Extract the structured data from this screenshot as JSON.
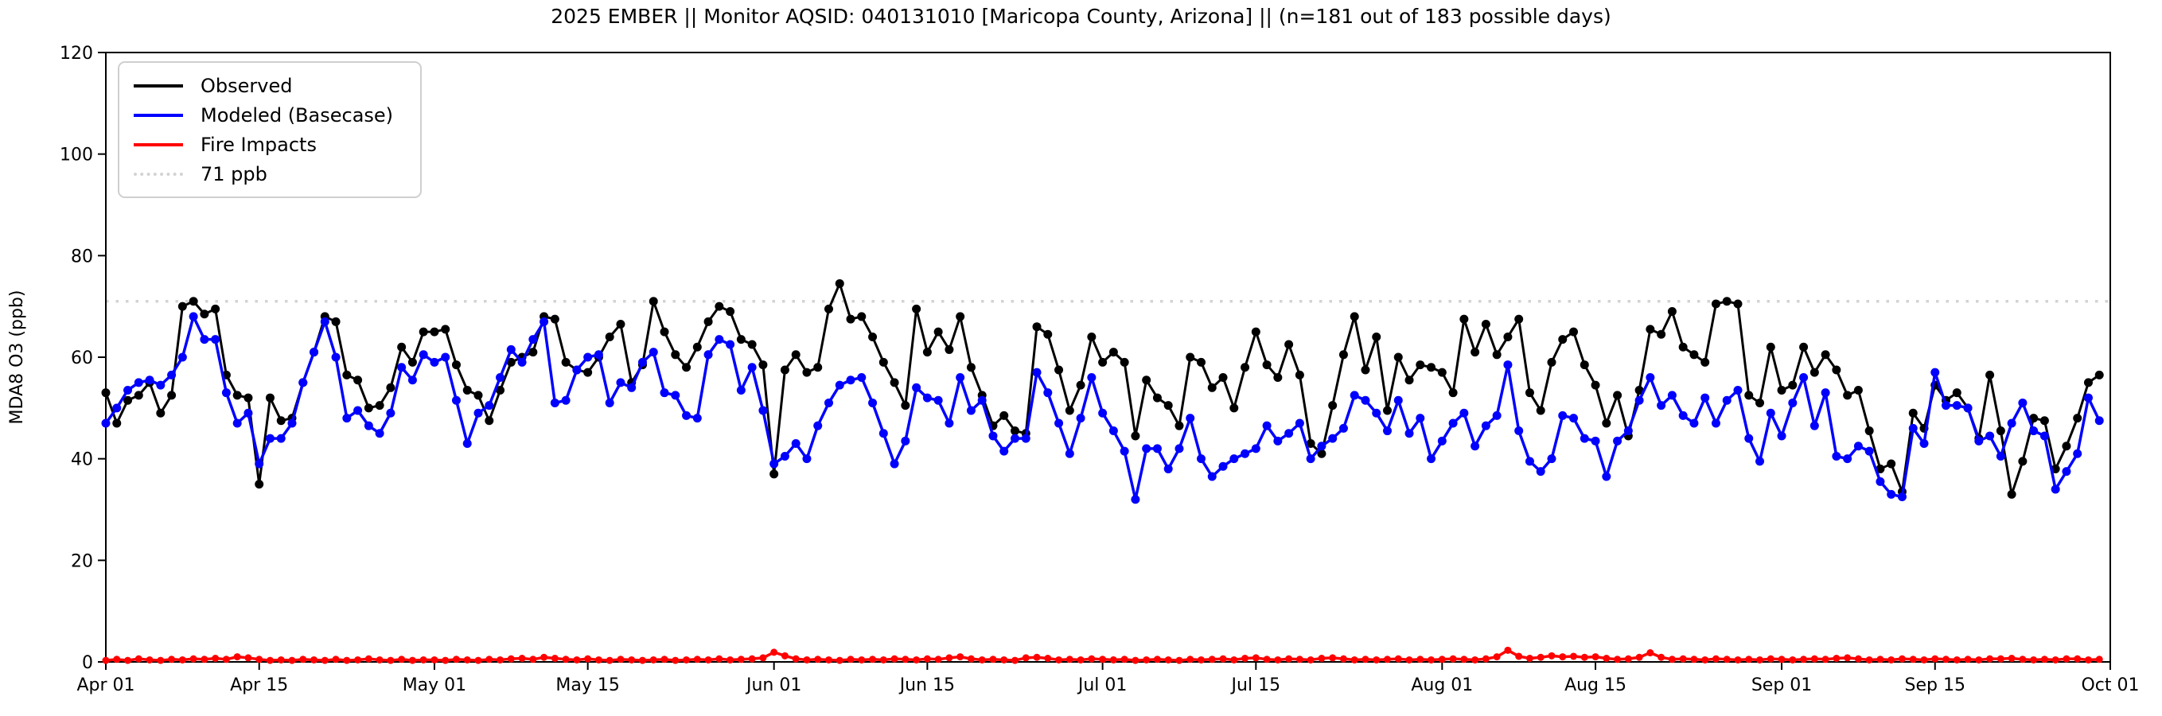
{
  "title": "2025 EMBER || Monitor AQSID: 040131010 [Maricopa County, Arizona] || (n=181 out of 183 possible days)",
  "legend": {
    "items": [
      {
        "label": "Observed",
        "color": "#000000",
        "style": "solid"
      },
      {
        "label": "Modeled (Basecase)",
        "color": "#0000ff",
        "style": "solid"
      },
      {
        "label": "Fire Impacts",
        "color": "#ff0000",
        "style": "solid"
      },
      {
        "label": "71 ppb",
        "color": "#d3d3d3",
        "style": "dotted"
      }
    ]
  },
  "y_axis": {
    "label": "MDA8 O3 (ppb)",
    "min": 0,
    "max": 120,
    "ticks": [
      0,
      20,
      40,
      60,
      80,
      100,
      120
    ]
  },
  "x_axis": {
    "ticks": [
      {
        "label": "Apr 01",
        "day": 0
      },
      {
        "label": "Apr 15",
        "day": 14
      },
      {
        "label": "May 01",
        "day": 30
      },
      {
        "label": "May 15",
        "day": 44
      },
      {
        "label": "Jun 01",
        "day": 61
      },
      {
        "label": "Jun 15",
        "day": 75
      },
      {
        "label": "Jul 01",
        "day": 91
      },
      {
        "label": "Jul 15",
        "day": 105
      },
      {
        "label": "Aug 01",
        "day": 122
      },
      {
        "label": "Aug 15",
        "day": 136
      },
      {
        "label": "Sep 01",
        "day": 153
      },
      {
        "label": "Sep 15",
        "day": 167
      },
      {
        "label": "Oct 01",
        "day": 183
      }
    ]
  },
  "chart_data": {
    "type": "line",
    "title": "2025 EMBER || Monitor AQSID: 040131010 [Maricopa County, Arizona] || (n=181 out of 183 possible days)",
    "xlabel": "",
    "ylabel": "MDA8 O3 (ppb)",
    "ylim": [
      0,
      120
    ],
    "x_description": "Daily values, day 0 = Apr 01 through day 182 = Sep 30; axis extends to Oct 01",
    "n_shown": 181,
    "n_possible": 183,
    "reference_line": {
      "value": 71,
      "label": "71 ppb",
      "color": "#d3d3d3",
      "linestyle": "dotted"
    },
    "legend_position": "upper left",
    "grid": false,
    "series": [
      {
        "name": "Observed",
        "color": "#000000",
        "marker": "circle",
        "values": [
          53,
          47,
          51.5,
          52.5,
          55,
          49,
          52.5,
          70,
          71,
          68.5,
          69.5,
          56.5,
          52.5,
          52,
          35,
          52,
          47.5,
          48,
          55,
          61,
          68,
          67,
          56.5,
          55.5,
          50,
          50.5,
          54,
          62,
          59,
          65,
          65,
          65.5,
          58.5,
          53.5,
          52.5,
          47.5,
          53.5,
          59,
          60,
          61,
          68,
          67.5,
          59,
          57.5,
          57,
          60,
          64,
          66.5,
          55,
          58.5,
          71,
          65,
          60.5,
          58,
          62,
          67,
          70,
          69,
          63.5,
          62.5,
          58.5,
          37,
          57.5,
          60.5,
          57,
          58,
          69.5,
          74.5,
          67.5,
          68,
          64,
          59,
          55,
          50.5,
          69.5,
          61,
          65,
          61.5,
          68,
          58,
          52.5,
          46.5,
          48.5,
          45.5,
          45,
          66,
          64.5,
          57.5,
          49.5,
          54.5,
          64,
          59,
          61,
          59,
          44.5,
          55.5,
          52,
          50.5,
          46.5,
          60,
          59,
          54,
          56,
          50,
          58,
          65,
          58.5,
          56,
          62.5,
          56.5,
          43,
          41,
          50.5,
          60.5,
          68,
          57.5,
          64,
          49.5,
          60,
          55.5,
          58.5,
          58,
          57,
          53,
          67.5,
          61,
          66.5,
          60.5,
          64,
          67.5,
          53,
          49.5,
          59,
          63.5,
          65,
          58.5,
          54.5,
          47,
          52.5,
          44.5,
          53.5,
          65.5,
          64.5,
          69,
          62,
          60.5,
          59,
          70.5,
          71,
          70.5,
          52.5,
          51,
          62,
          53.5,
          54.5,
          62,
          57,
          60.5,
          57.5,
          52.5,
          53.5,
          45.5,
          38,
          39,
          33.5,
          49,
          46,
          54.5,
          51.5,
          53,
          50,
          44,
          56.5,
          45.5,
          33,
          39.5,
          48,
          47.5,
          38,
          42.5,
          48,
          55,
          56.5
        ]
      },
      {
        "name": "Modeled (Basecase)",
        "color": "#0000ff",
        "marker": "circle",
        "values": [
          47,
          50,
          53.5,
          55,
          55.5,
          54.5,
          56.5,
          60,
          68,
          63.5,
          63.5,
          53,
          47,
          49,
          39,
          44,
          44,
          47,
          55,
          61,
          67,
          60,
          48,
          49.5,
          46.5,
          45,
          49,
          58,
          55.5,
          60.5,
          59,
          60,
          51.5,
          43,
          49,
          50.5,
          56,
          61.5,
          59,
          63.5,
          67,
          51,
          51.5,
          57.5,
          60,
          60.5,
          51,
          55,
          54,
          59,
          61,
          53,
          52.5,
          48.5,
          48,
          60.5,
          63.5,
          62.5,
          53.5,
          58,
          49.5,
          39,
          40.5,
          43,
          40,
          46.5,
          51,
          54.5,
          55.5,
          56,
          51,
          45,
          39,
          43.5,
          54,
          52,
          51.5,
          47,
          56,
          49.5,
          51.5,
          44.5,
          41.5,
          44,
          44,
          57,
          53,
          47,
          41,
          48,
          56,
          49,
          45.5,
          41.5,
          32,
          42,
          42,
          38,
          42,
          48,
          40,
          36.5,
          38.5,
          40,
          41,
          42,
          46.5,
          43.5,
          45,
          47,
          40,
          42.5,
          44,
          46,
          52.5,
          51.5,
          49,
          45.5,
          51.5,
          45,
          48,
          40,
          43.5,
          47,
          49,
          42.5,
          46.5,
          48.5,
          58.5,
          45.5,
          39.5,
          37.5,
          40,
          48.5,
          48,
          44,
          43.5,
          36.5,
          43.5,
          45.5,
          51.5,
          56,
          50.5,
          52.5,
          48.5,
          47,
          52,
          47,
          51.5,
          53.5,
          44,
          39.5,
          49,
          44.5,
          51,
          56,
          46.5,
          53,
          40.5,
          40,
          42.5,
          41.5,
          35.5,
          33,
          32.5,
          46,
          43,
          57,
          50.5,
          50.5,
          50,
          43.5,
          44.5,
          40.5,
          47,
          51,
          45.5,
          44.5,
          34,
          37.5,
          41,
          52,
          47.5
        ]
      },
      {
        "name": "Fire Impacts",
        "color": "#ff0000",
        "marker": "circle",
        "values": [
          0.3,
          0.5,
          0.3,
          0.6,
          0.4,
          0.3,
          0.5,
          0.4,
          0.6,
          0.5,
          0.7,
          0.5,
          1.0,
          0.8,
          0.5,
          0.3,
          0.4,
          0.3,
          0.5,
          0.4,
          0.3,
          0.5,
          0.3,
          0.4,
          0.6,
          0.4,
          0.3,
          0.5,
          0.3,
          0.4,
          0.4,
          0.3,
          0.5,
          0.4,
          0.3,
          0.5,
          0.4,
          0.6,
          0.7,
          0.5,
          0.9,
          0.7,
          0.5,
          0.4,
          0.6,
          0.4,
          0.3,
          0.5,
          0.4,
          0.3,
          0.4,
          0.5,
          0.3,
          0.4,
          0.5,
          0.4,
          0.6,
          0.4,
          0.5,
          0.6,
          0.8,
          1.9,
          1.2,
          0.6,
          0.4,
          0.5,
          0.4,
          0.3,
          0.5,
          0.4,
          0.5,
          0.4,
          0.6,
          0.5,
          0.4,
          0.6,
          0.5,
          0.8,
          1.0,
          0.6,
          0.4,
          0.5,
          0.4,
          0.3,
          0.8,
          0.9,
          0.7,
          0.4,
          0.5,
          0.4,
          0.6,
          0.5,
          0.4,
          0.5,
          0.3,
          0.4,
          0.5,
          0.4,
          0.3,
          0.5,
          0.4,
          0.5,
          0.6,
          0.4,
          0.7,
          0.8,
          0.5,
          0.4,
          0.6,
          0.5,
          0.4,
          0.7,
          0.8,
          0.6,
          0.4,
          0.5,
          0.4,
          0.5,
          0.6,
          0.4,
          0.5,
          0.4,
          0.5,
          0.6,
          0.5,
          0.4,
          0.6,
          1.0,
          2.3,
          1.1,
          0.7,
          0.9,
          1.2,
          1.0,
          1.1,
          0.9,
          1.0,
          0.7,
          0.5,
          0.6,
          0.9,
          1.8,
          0.9,
          0.5,
          0.6,
          0.5,
          0.4,
          0.6,
          0.5,
          0.4,
          0.5,
          0.4,
          0.6,
          0.5,
          0.4,
          0.5,
          0.6,
          0.5,
          0.7,
          0.8,
          0.6,
          0.4,
          0.5,
          0.4,
          0.6,
          0.5,
          0.4,
          0.6,
          0.5,
          0.4,
          0.5,
          0.4,
          0.6,
          0.6,
          0.7,
          0.5,
          0.4,
          0.5,
          0.4,
          0.6,
          0.6,
          0.4,
          0.5
        ]
      }
    ]
  }
}
